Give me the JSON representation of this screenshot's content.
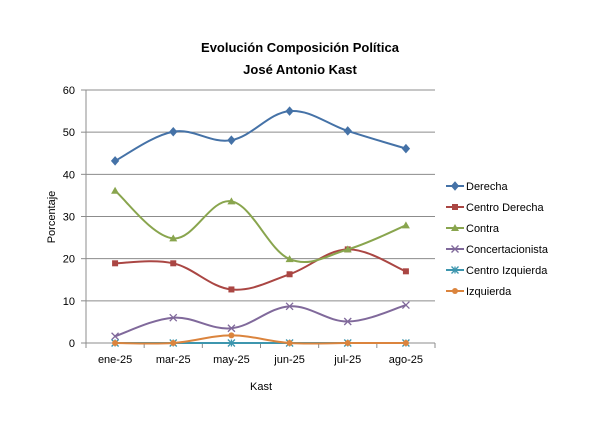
{
  "chart_data": {
    "type": "line",
    "title": "Evolución Composición Política",
    "subtitle": "José Antonio Kast",
    "xlabel": "Kast",
    "ylabel": "Porcentaje",
    "categories": [
      "ene-25",
      "mar-25",
      "may-25",
      "jun-25",
      "jul-25",
      "ago-25"
    ],
    "ylim": [
      0,
      60
    ],
    "yticks": [
      "0",
      "10",
      "20",
      "30",
      "40",
      "50",
      "60"
    ],
    "grid": "horizontal",
    "legend_position": "right",
    "series": [
      {
        "name": "Derecha",
        "values": [
          43.2,
          50.1,
          48.1,
          55.0,
          50.3,
          46.1
        ],
        "color": "#4572a7",
        "marker": "diamond"
      },
      {
        "name": "Centro Derecha",
        "values": [
          18.9,
          18.9,
          12.7,
          16.3,
          22.2,
          17.0
        ],
        "color": "#aa4643",
        "marker": "square"
      },
      {
        "name": "Contra",
        "values": [
          36.1,
          24.8,
          33.6,
          19.9,
          22.2,
          27.9
        ],
        "color": "#89a54e",
        "marker": "triangle"
      },
      {
        "name": "Concertacionista",
        "values": [
          1.6,
          6.0,
          3.5,
          8.7,
          5.1,
          9.0
        ],
        "color": "#80699b",
        "marker": "x"
      },
      {
        "name": "Centro Izquierda",
        "values": [
          0,
          0,
          0,
          0,
          0,
          0
        ],
        "color": "#3d96ae",
        "marker": "star"
      },
      {
        "name": "Izquierda",
        "values": [
          0,
          0,
          1.8,
          0,
          0,
          0
        ],
        "color": "#db843d",
        "marker": "circle"
      }
    ]
  }
}
